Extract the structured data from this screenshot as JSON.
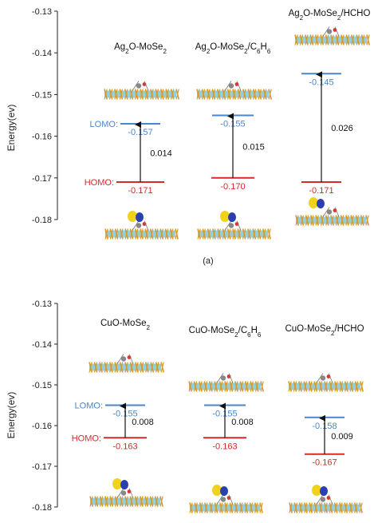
{
  "colors": {
    "lomo": "#4a86c8",
    "homo": "#d42a2a",
    "axis": "#222222",
    "arrow": "#111111",
    "substrate_a": "#d99a2b",
    "substrate_b": "#3fa6b6",
    "orbital_yellow": "#f0d21a",
    "orbital_blue": "#2a3fb0"
  },
  "chart_data": [
    {
      "type": "energy-level diagram",
      "ylabel": "Energy(ev)",
      "ylim": [
        -0.18,
        -0.13
      ],
      "yticks": [
        "-0.13",
        "-0.14",
        "-0.15",
        "-0.16",
        "-0.17",
        "-0.18"
      ],
      "sublabel": "(a)",
      "side_labels": {
        "lomo": "LOMO:",
        "homo": "HOMO:"
      },
      "systems": [
        {
          "title": [
            "Ag",
            "2",
            "O-MoSe",
            "2",
            ""
          ],
          "lomo": -0.157,
          "homo": -0.171,
          "lomo_label": "-0.157",
          "homo_label": "-0.171",
          "gap_label": "0.014"
        },
        {
          "title": [
            "Ag",
            "2",
            "O-MoSe",
            "2",
            "/C",
            "6",
            "H",
            "6"
          ],
          "lomo": -0.155,
          "homo": -0.17,
          "lomo_label": "-0.155",
          "homo_label": "-0.170",
          "gap_label": "0.015"
        },
        {
          "title": [
            "Ag",
            "2",
            "O-MoSe",
            "2",
            "/HCHO"
          ],
          "lomo": -0.145,
          "homo": -0.171,
          "lomo_label": "-0.145",
          "homo_label": "-0.171",
          "gap_label": "0.026"
        }
      ]
    },
    {
      "type": "energy-level diagram",
      "ylabel": "Energy(ev)",
      "ylim": [
        -0.18,
        -0.13
      ],
      "yticks": [
        "-0.13",
        "-0.14",
        "-0.15",
        "-0.16",
        "-0.17",
        "-0.18"
      ],
      "side_labels": {
        "lomo": "LOMO:",
        "homo": "HOMO:"
      },
      "systems": [
        {
          "title": [
            "CuO-MoSe",
            "2",
            ""
          ],
          "lomo": -0.155,
          "homo": -0.163,
          "lomo_label": "-0.155",
          "homo_label": "-0.163",
          "gap_label": "0.008"
        },
        {
          "title": [
            "CuO-MoSe",
            "2",
            "/C",
            "6",
            "H",
            "6"
          ],
          "lomo": -0.155,
          "homo": -0.163,
          "lomo_label": "-0.155",
          "homo_label": "-0.163",
          "gap_label": "0.008"
        },
        {
          "title": [
            "CuO-MoSe",
            "2",
            "/HCHO"
          ],
          "lomo": -0.158,
          "homo": -0.167,
          "lomo_label": "-0.158",
          "homo_label": "-0.167",
          "gap_label": "0.009"
        }
      ]
    }
  ]
}
